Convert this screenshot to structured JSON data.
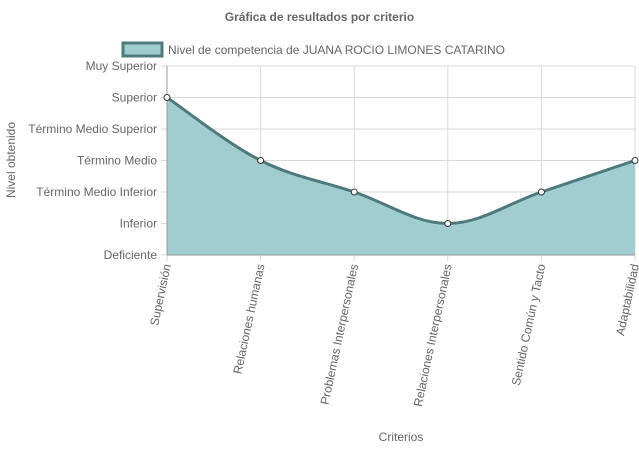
{
  "chart_data": {
    "type": "area",
    "title": "Gráfica de resultados por criterio",
    "xlabel": "Criterios",
    "ylabel": "Nivel obtenido",
    "categories": [
      "Supervisión",
      "Relaciones humanas",
      "Problemas Interpersonales",
      "Relaciones Interpersonales",
      "Sentido Común y Tacto",
      "Adaptabilidad"
    ],
    "y_levels": [
      "Deficiente",
      "Inferior",
      "Término Medio Inferior",
      "Término Medio",
      "Término Medio Superior",
      "Superior",
      "Muy Superior"
    ],
    "series": [
      {
        "name": "Nivel de competencia de JUANA ROCIO LIMONES CATARINO",
        "values": [
          5,
          3,
          2,
          1,
          2,
          3
        ]
      }
    ],
    "ylim": [
      0,
      6
    ],
    "grid": true,
    "legend": "top",
    "colors": {
      "fill": "#a0cdd0",
      "line": "#4e7a7e",
      "grid": "#d9d9d9",
      "axis": "#999999",
      "point_fill": "#ffffff"
    }
  }
}
